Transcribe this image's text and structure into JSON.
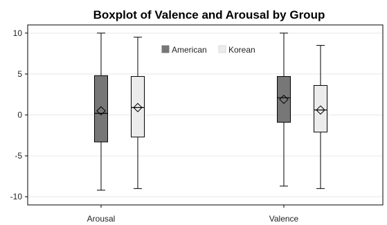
{
  "chart_data": {
    "type": "boxplot",
    "title": "Boxplot of Valence and Arousal by Group",
    "xlabel": "",
    "ylabel": "",
    "categories": [
      "Arousal",
      "Valence"
    ],
    "ylim": [
      -11,
      11
    ],
    "yticks": [
      -10,
      -5,
      0,
      5,
      10
    ],
    "grid": true,
    "legend_position": "top-center",
    "series": [
      {
        "name": "American",
        "color": "#777777",
        "boxes": [
          {
            "min": -9.2,
            "q1": -3.3,
            "median": 0.2,
            "q3": 4.8,
            "max": 10.0,
            "mean": 0.5
          },
          {
            "min": -8.7,
            "q1": -0.9,
            "median": 2.1,
            "q3": 4.7,
            "max": 10.0,
            "mean": 1.9
          }
        ]
      },
      {
        "name": "Korean",
        "color": "#ececec",
        "boxes": [
          {
            "min": -9.0,
            "q1": -2.7,
            "median": 0.9,
            "q3": 4.7,
            "max": 9.5,
            "mean": 0.9
          },
          {
            "min": -9.0,
            "q1": -2.1,
            "median": 0.6,
            "q3": 3.6,
            "max": 8.5,
            "mean": 0.6
          }
        ]
      }
    ]
  }
}
